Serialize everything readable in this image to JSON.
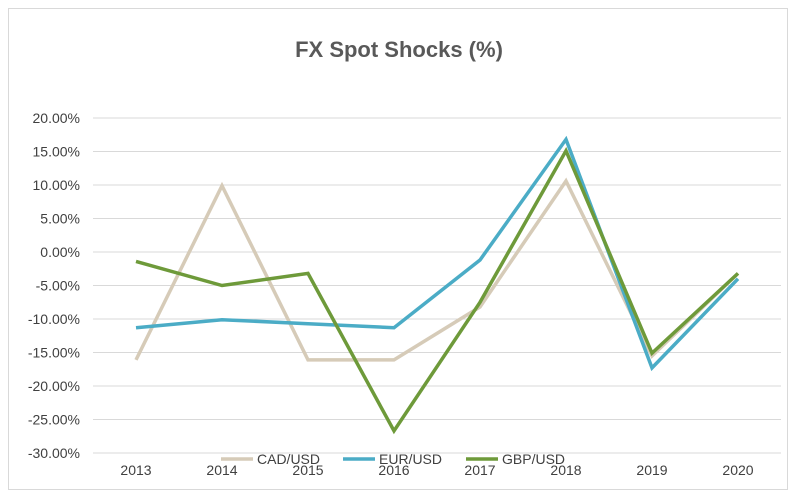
{
  "chart_data": {
    "type": "line",
    "title": "FX Spot Shocks (%)",
    "categories": [
      "2013",
      "2014",
      "2015",
      "2016",
      "2017",
      "2018",
      "2019",
      "2020"
    ],
    "y_ticks": [
      "20.00%",
      "15.00%",
      "10.00%",
      "5.00%",
      "0.00%",
      "-5.00%",
      "-10.00%",
      "-15.00%",
      "-20.00%",
      "-25.00%",
      "-30.00%"
    ],
    "ylim": [
      -30,
      20
    ],
    "grid": true,
    "legend_position": "bottom",
    "series": [
      {
        "name": "CAD/USD",
        "color": "#d6cbb8",
        "values": [
          -16.1,
          9.9,
          -16.1,
          -16.1,
          -8.2,
          10.6,
          -15.5,
          -3.2
        ]
      },
      {
        "name": "EUR/USD",
        "color": "#4bacc6",
        "values": [
          -11.3,
          -10.1,
          -10.7,
          -11.3,
          -1.2,
          16.8,
          -17.3,
          -4.0
        ]
      },
      {
        "name": "GBP/USD",
        "color": "#6e9a3a",
        "values": [
          -1.4,
          -5.0,
          -3.2,
          -26.7,
          -7.5,
          15.1,
          -15.1,
          -3.2
        ]
      }
    ]
  }
}
